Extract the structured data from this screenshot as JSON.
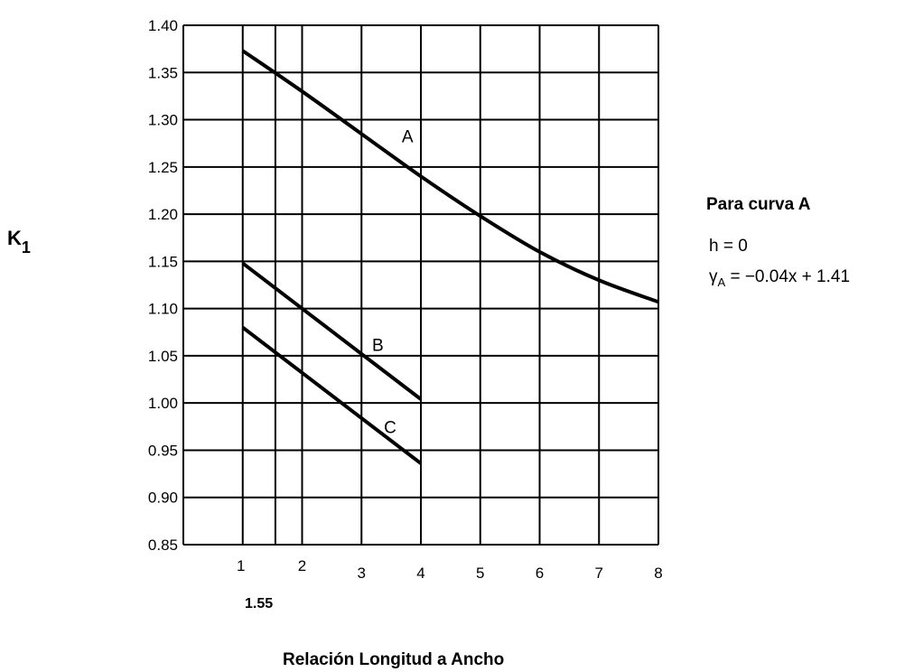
{
  "chart_data": {
    "type": "line",
    "ylabel_main": "K",
    "ylabel_sub": "1",
    "xlabel": "Relación Longitud a Ancho",
    "xlim": [
      0,
      8
    ],
    "ylim": [
      0.85,
      1.4
    ],
    "x_ticks": [
      "1",
      "2",
      "3",
      "4",
      "5",
      "6",
      "7",
      "8"
    ],
    "x_extra_tick": {
      "value": 1.55,
      "label": "1.55"
    },
    "y_ticks": [
      "1.40",
      "1.35",
      "1.30",
      "1.25",
      "1.20",
      "1.15",
      "1.10",
      "1.05",
      "1.00",
      "0.95",
      "0.90",
      "0.85"
    ],
    "grid": true,
    "series": [
      {
        "name": "A",
        "x": [
          1,
          2,
          3,
          4,
          5,
          6,
          7,
          8
        ],
        "y": [
          1.373,
          1.33,
          1.285,
          1.24,
          1.198,
          1.16,
          1.13,
          1.107
        ],
        "label_at": [
          3.8,
          1.283
        ]
      },
      {
        "name": "B",
        "x": [
          1,
          4
        ],
        "y": [
          1.148,
          1.004
        ],
        "label_at": [
          3.3,
          1.062
        ]
      },
      {
        "name": "C",
        "x": [
          1,
          4
        ],
        "y": [
          1.08,
          0.936
        ],
        "label_at": [
          3.5,
          0.975
        ]
      }
    ]
  },
  "annotation": {
    "title": "Para curva A",
    "line1": "h  =  0",
    "eq_prefix": "γ",
    "eq_sub": "A",
    "eq_rest": " =  −0.04x + 1.41"
  }
}
